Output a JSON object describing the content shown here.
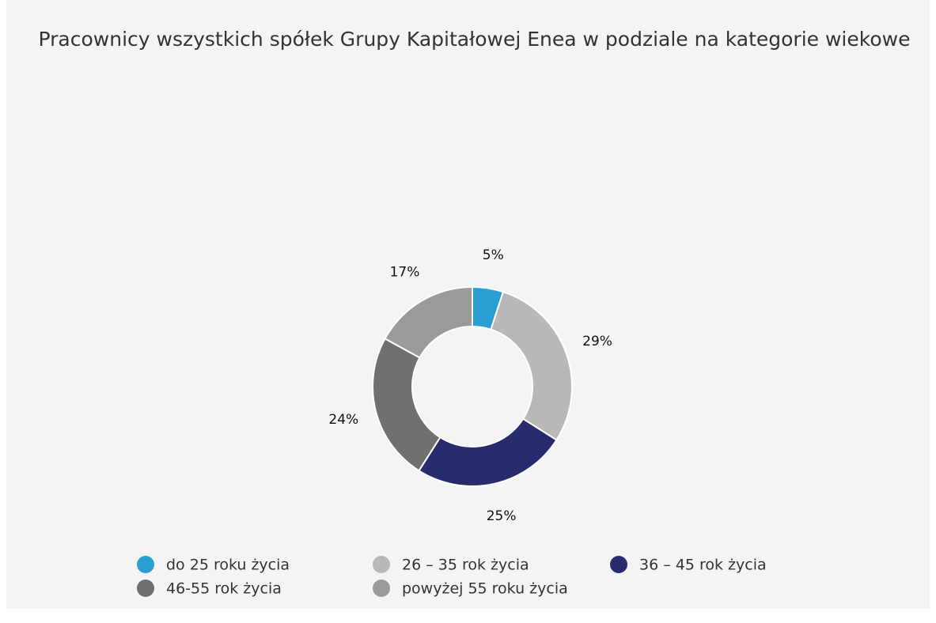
{
  "chart_data": {
    "type": "donut",
    "title": "Pracownicy wszystkich spółek Grupy Kapitałowej Enea w podziale na kategorie wiekowe",
    "categories": [
      "do 25 roku życia",
      "26 – 35 rok życia",
      "36 – 45 rok życia",
      "46-55 rok życia",
      "powyżej 55 roku życia"
    ],
    "values": [
      5,
      29,
      25,
      24,
      17
    ],
    "value_labels": [
      "5%",
      "29%",
      "25%",
      "24%",
      "17%"
    ],
    "colors": [
      "#2b9fd4",
      "#b8b8b8",
      "#2a2b6e",
      "#707070",
      "#9a9a9a"
    ],
    "legend": "bottom"
  }
}
